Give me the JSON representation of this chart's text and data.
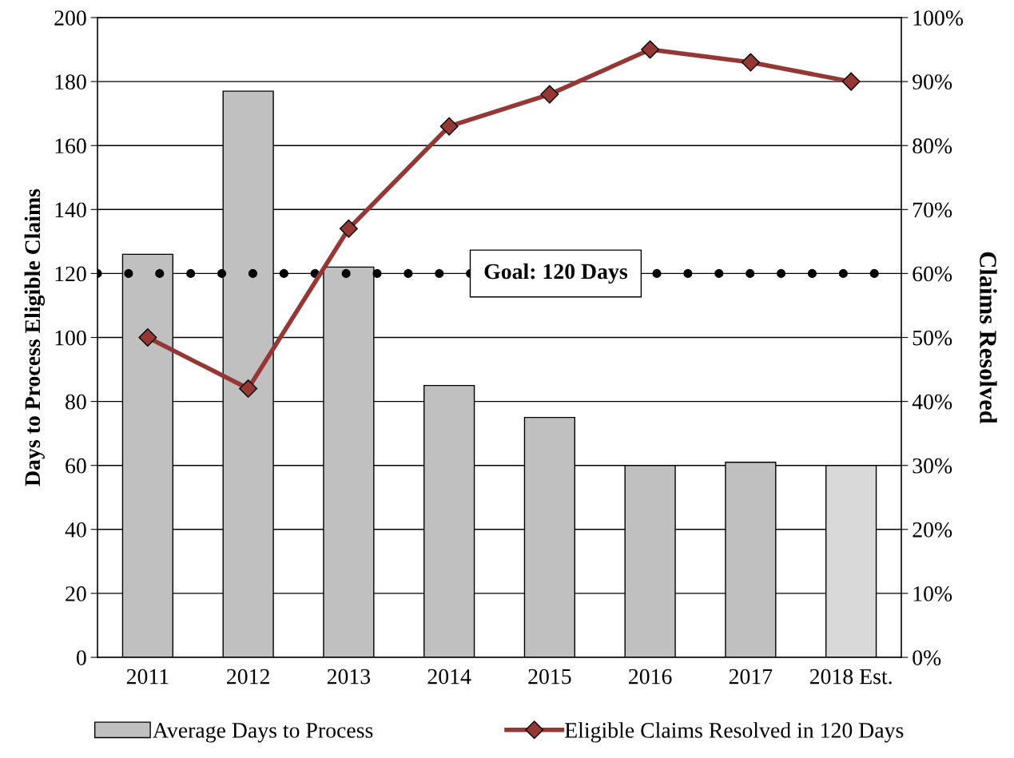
{
  "chart_data": {
    "type": "bar",
    "categories": [
      "2011",
      "2012",
      "2013",
      "2014",
      "2015",
      "2016",
      "2017",
      "2018 Est."
    ],
    "series": [
      {
        "name": "Average Days to Process",
        "colors": [
          "#c0c0c0",
          "#c0c0c0",
          "#c0c0c0",
          "#c0c0c0",
          "#c0c0c0",
          "#c0c0c0",
          "#c0c0c0",
          "#d9d9d9"
        ],
        "values": [
          126,
          177,
          122,
          85,
          75,
          60,
          61,
          60
        ]
      },
      {
        "name": "Eligible Claims Resolved in 120 Days",
        "type": "line",
        "axis": "y2",
        "color": "#953735",
        "marker": "diamond",
        "values": [
          50,
          42,
          67,
          83,
          88,
          95,
          93,
          90
        ]
      }
    ],
    "ylabel": "Days to Process Eligible Claims",
    "y2label": "Claims Resolved",
    "ylim": [
      0,
      200
    ],
    "yticks": [
      0,
      20,
      40,
      60,
      80,
      100,
      120,
      140,
      160,
      180,
      200
    ],
    "y2lim": [
      0,
      100
    ],
    "y2ticks": [
      {
        "value": 0,
        "label": "0%"
      },
      {
        "value": 10,
        "label": "10%"
      },
      {
        "value": 20,
        "label": "20%"
      },
      {
        "value": 30,
        "label": "30%"
      },
      {
        "value": 40,
        "label": "40%"
      },
      {
        "value": 50,
        "label": "50%"
      },
      {
        "value": 60,
        "label": "60%"
      },
      {
        "value": 70,
        "label": "70%"
      },
      {
        "value": 80,
        "label": "80%"
      },
      {
        "value": 90,
        "label": "90%"
      },
      {
        "value": 100,
        "label": "100%"
      }
    ],
    "ref_lines": [
      {
        "axis": "y",
        "value": 120,
        "label": "Goal: 120 Days",
        "color": "#000000",
        "line_style": "dotted"
      }
    ],
    "grid": "y",
    "legend": "bottom"
  }
}
